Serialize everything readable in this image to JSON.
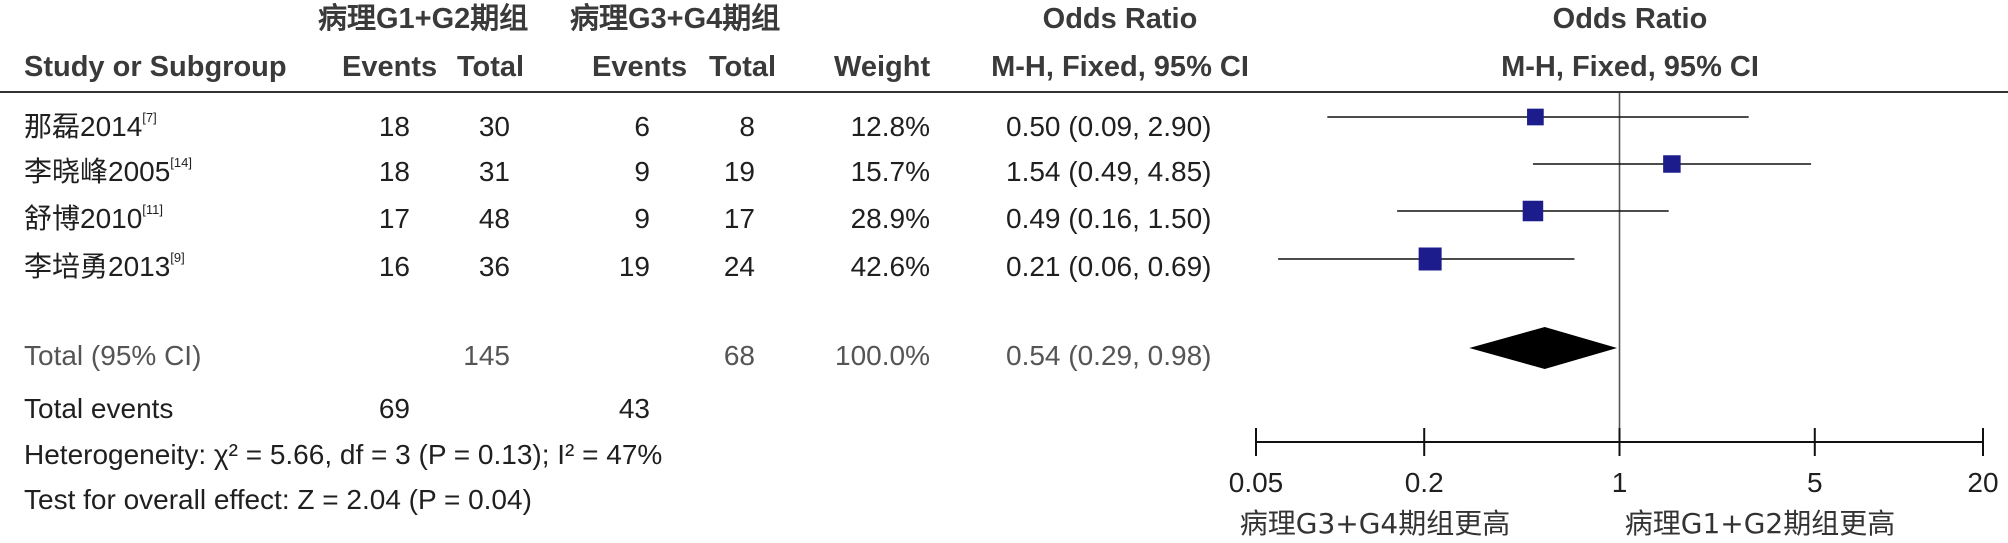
{
  "header": {
    "group1": "病理G1+G2期组",
    "group2": "病理G3+G4期组",
    "or_title": "Odds Ratio",
    "or_title_plot": "Odds Ratio",
    "study_col": "Study or Subgroup",
    "events1": "Events",
    "total1": "Total",
    "events2": "Events",
    "total2": "Total",
    "weight": "Weight",
    "method": "M-H, Fixed, 95% CI",
    "method_plot": "M-H, Fixed, 95% CI"
  },
  "studies": [
    {
      "name": "那磊2014",
      "ref": "[7]",
      "e1": "18",
      "t1": "30",
      "e2": "6",
      "t2": "8",
      "weight": "12.8%",
      "ci_text": "0.50 (0.09, 2.90)"
    },
    {
      "name": "李晓峰2005",
      "ref": "[14]",
      "e1": "18",
      "t1": "31",
      "e2": "9",
      "t2": "19",
      "weight": "15.7%",
      "ci_text": "1.54 (0.49, 4.85)"
    },
    {
      "name": "舒博2010",
      "ref": "[11]",
      "e1": "17",
      "t1": "48",
      "e2": "9",
      "t2": "17",
      "weight": "28.9%",
      "ci_text": "0.49 (0.16, 1.50)"
    },
    {
      "name": "李培勇2013",
      "ref": "[9]",
      "e1": "16",
      "t1": "36",
      "e2": "19",
      "t2": "24",
      "weight": "42.6%",
      "ci_text": "0.21 (0.06, 0.69)"
    }
  ],
  "total": {
    "label": "Total (95% CI)",
    "t1": "145",
    "t2": "68",
    "weight": "100.0%",
    "ci_text": "0.54 (0.29, 0.98)"
  },
  "total_events": {
    "label": "Total events",
    "e1": "69",
    "e2": "43"
  },
  "heterogeneity": "Heterogeneity: χ² = 5.66, df = 3 (P = 0.13); I² = 47%",
  "overall_effect": "Test for overall effect: Z = 2.04 (P = 0.04)",
  "axis_labels": {
    "left": "病理G3+G4期组更高",
    "right": "病理G1+G2期组更高"
  },
  "chart_data": {
    "type": "forest",
    "scale": "log",
    "xlim": [
      0.05,
      20
    ],
    "ticks": [
      {
        "value": 0.05,
        "label": "0.05"
      },
      {
        "value": 0.2,
        "label": "0.2"
      },
      {
        "value": 1,
        "label": "1"
      },
      {
        "value": 5,
        "label": "5"
      },
      {
        "value": 20,
        "label": "20"
      }
    ],
    "reference_line": 1,
    "studies": [
      {
        "or": 0.5,
        "lo": 0.09,
        "hi": 2.9,
        "weight": 12.8
      },
      {
        "or": 1.54,
        "lo": 0.49,
        "hi": 4.85,
        "weight": 15.7
      },
      {
        "or": 0.49,
        "lo": 0.16,
        "hi": 1.5,
        "weight": 28.9
      },
      {
        "or": 0.21,
        "lo": 0.06,
        "hi": 0.69,
        "weight": 42.6
      }
    ],
    "pooled": {
      "or": 0.54,
      "lo": 0.29,
      "hi": 0.98
    },
    "colors": {
      "marker": "#1c1c8c",
      "line": "#111111",
      "diamond": "#000000"
    }
  }
}
